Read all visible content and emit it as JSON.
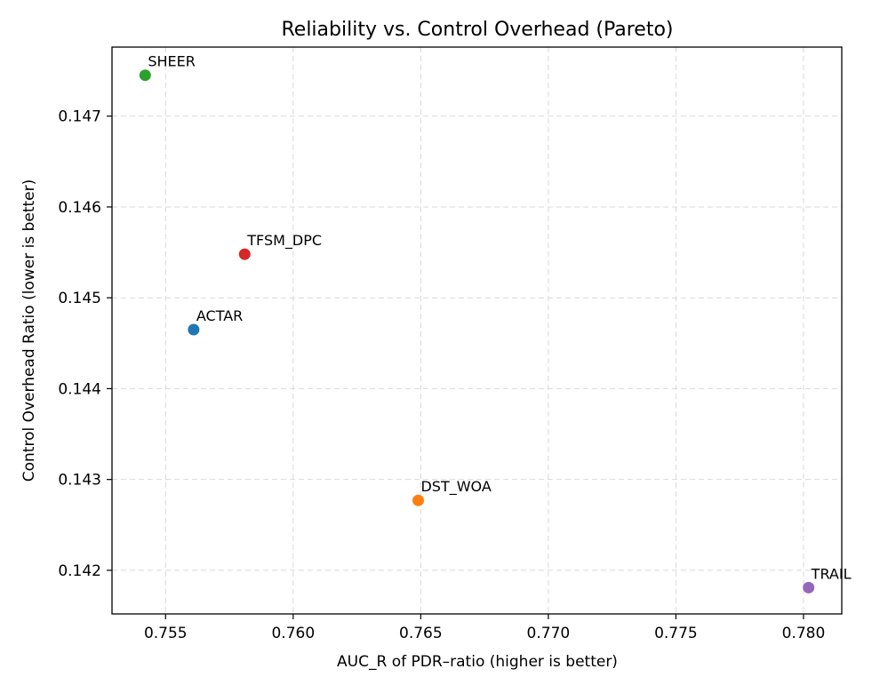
{
  "chart_data": {
    "type": "scatter",
    "title": "Reliability vs. Control Overhead (Pareto)",
    "xlabel": "AUC_R of PDR–ratio (higher is better)",
    "ylabel": "Control Overhead Ratio (lower is better)",
    "xlim": [
      0.7529,
      0.7815
    ],
    "ylim": [
      0.14152,
      0.14776
    ],
    "xticks": [
      0.755,
      0.76,
      0.765,
      0.77,
      0.775,
      0.78
    ],
    "xtick_labels": [
      "0.755",
      "0.760",
      "0.765",
      "0.770",
      "0.775",
      "0.780"
    ],
    "yticks": [
      0.142,
      0.143,
      0.144,
      0.145,
      0.146,
      0.147
    ],
    "ytick_labels": [
      "0.142",
      "0.143",
      "0.144",
      "0.145",
      "0.146",
      "0.147"
    ],
    "grid": true,
    "points": [
      {
        "label": "ACTAR",
        "x": 0.7561,
        "y": 0.14465,
        "color": "#1f77b4"
      },
      {
        "label": "DST_WOA",
        "x": 0.7649,
        "y": 0.14277,
        "color": "#ff7f0e"
      },
      {
        "label": "SHEER",
        "x": 0.7542,
        "y": 0.14745,
        "color": "#2ca02c"
      },
      {
        "label": "TFSM_DPC",
        "x": 0.7581,
        "y": 0.14548,
        "color": "#d62728"
      },
      {
        "label": "TRAIL",
        "x": 0.7802,
        "y": 0.14181,
        "color": "#9467bd"
      }
    ]
  }
}
